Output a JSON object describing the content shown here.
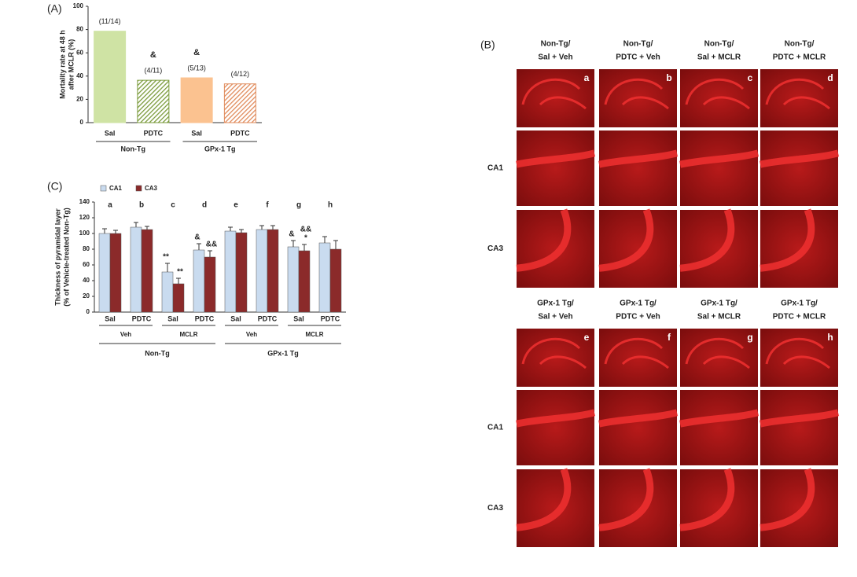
{
  "chart_data": [
    {
      "type": "bar",
      "label": "(A)",
      "ylabel": [
        "Mortality rate at 48 h",
        "after MCLR (%)"
      ],
      "categories": [
        "Sal",
        "PDTC",
        "Sal",
        "PDTC"
      ],
      "groups": [
        "Non-Tg",
        "GPx-1 Tg"
      ],
      "values": [
        78.6,
        36.4,
        38.5,
        33.3
      ],
      "counts": [
        "(11/14)",
        "(4/11)",
        "(5/13)",
        "(4/12)"
      ],
      "significance": [
        null,
        "&",
        "&",
        null
      ],
      "colors": [
        "#cfe3a4",
        "#7a9a3a",
        "#fbc290",
        "#e08a5a"
      ],
      "hatched": [
        false,
        true,
        false,
        true
      ],
      "ylim": [
        0,
        100
      ],
      "yticks": [
        0,
        20,
        40,
        60,
        80,
        100
      ]
    },
    {
      "type": "grouped-bar",
      "label": "(C)",
      "ylabel": [
        "Thickness of pyramidal layer",
        "(% of Vehicle-treated Non-Tg)"
      ],
      "categories": [
        "Sal",
        "PDTC",
        "Sal",
        "PDTC",
        "Sal",
        "PDTC",
        "Sal",
        "PDTC"
      ],
      "letters": [
        "a",
        "b",
        "c",
        "d",
        "e",
        "f",
        "g",
        "h"
      ],
      "subgroups": [
        "Veh",
        "MCLR",
        "Veh",
        "MCLR"
      ],
      "groups": [
        "Non-Tg",
        "GPx-1 Tg"
      ],
      "series": [
        {
          "name": "CA1",
          "color": "#c9dbef",
          "values": [
            100,
            108,
            51,
            79,
            103,
            105,
            83,
            88
          ],
          "errors": [
            6,
            6,
            11,
            8,
            5,
            5,
            8,
            8
          ],
          "annotations": [
            null,
            null,
            [
              "**"
            ],
            [
              "&"
            ],
            null,
            null,
            [
              "&"
            ],
            null
          ]
        },
        {
          "name": "CA3",
          "color": "#8b2a2a",
          "values": [
            100,
            105,
            36,
            70,
            101,
            105,
            78,
            80
          ],
          "errors": [
            4,
            4,
            7,
            8,
            4,
            5,
            8,
            11
          ],
          "annotations": [
            null,
            null,
            [
              "**"
            ],
            [
              "&&"
            ],
            null,
            null,
            [
              "&&",
              "*"
            ],
            null
          ]
        }
      ],
      "ylim": [
        0,
        140
      ],
      "yticks": [
        0,
        20,
        40,
        60,
        80,
        100,
        120,
        140
      ]
    }
  ],
  "panel_b": {
    "label": "(B)",
    "rows": [
      "CA1",
      "CA3"
    ],
    "blocks": [
      {
        "headers": [
          [
            "Non-Tg/",
            "Sal + Veh"
          ],
          [
            "Non-Tg/",
            "PDTC + Veh"
          ],
          [
            "Non-Tg/",
            "Sal + MCLR"
          ],
          [
            "Non-Tg/",
            "PDTC + MCLR"
          ]
        ],
        "letters": [
          "a",
          "b",
          "c",
          "d"
        ]
      },
      {
        "headers": [
          [
            "GPx-1 Tg/",
            "Sal + Veh"
          ],
          [
            "GPx-1 Tg/",
            "PDTC + Veh"
          ],
          [
            "GPx-1 Tg/",
            "Sal + MCLR"
          ],
          [
            "GPx-1 Tg/",
            "PDTC + MCLR"
          ]
        ],
        "letters": [
          "e",
          "f",
          "g",
          "h"
        ]
      }
    ]
  }
}
